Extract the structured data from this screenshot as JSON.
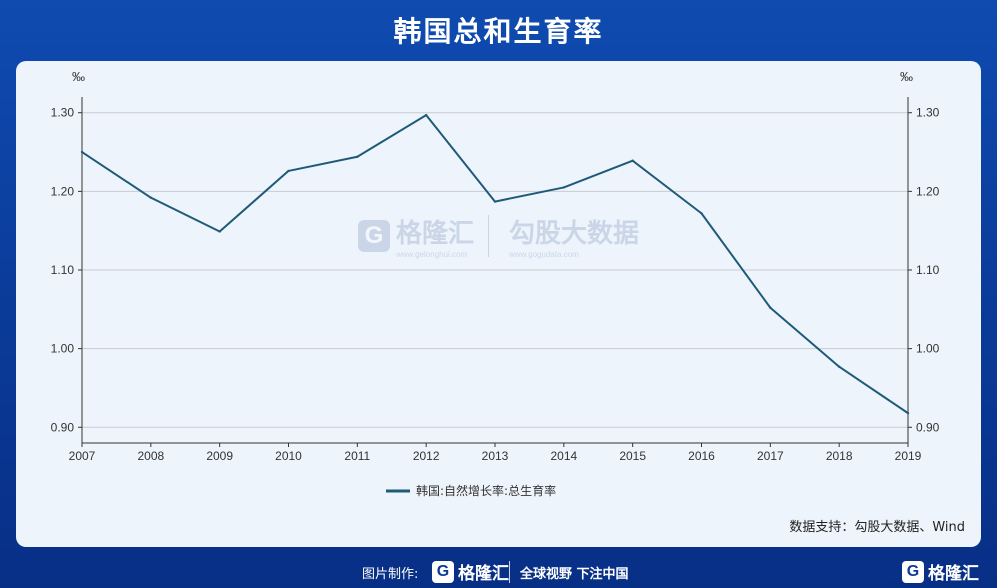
{
  "title": "韩国总和生育率",
  "chart_data": {
    "type": "line",
    "x": [
      "2007",
      "2008",
      "2009",
      "2010",
      "2011",
      "2012",
      "2013",
      "2014",
      "2015",
      "2016",
      "2017",
      "2018",
      "2019"
    ],
    "series": [
      {
        "name": "韩国:自然增长率:总生育率",
        "values": [
          1.25,
          1.192,
          1.149,
          1.226,
          1.244,
          1.297,
          1.187,
          1.205,
          1.239,
          1.172,
          1.052,
          0.977,
          0.918
        ],
        "color": "#1f5a78"
      }
    ],
    "y_unit_left": "‰",
    "y_unit_right": "‰",
    "ylim": [
      0.88,
      1.32
    ],
    "yticks": [
      0.9,
      1.0,
      1.1,
      1.2,
      1.3
    ],
    "ytick_labels": [
      "0.90",
      "1.00",
      "1.10",
      "1.20",
      "1.30"
    ],
    "grid": true,
    "legend_position": "bottom-center"
  },
  "watermark": {
    "logo_letter": "G",
    "brand": "格隆汇",
    "brand_url": "www.gelonghui.com",
    "partner": "勾股大数据",
    "partner_url": "www.gogudata.com"
  },
  "source": "数据支持：勾股大数据、Wind",
  "footer": {
    "made_by": "图片制作:",
    "logo_letter": "G",
    "brand": "格隆汇",
    "slogan": "全球视野 下注中国",
    "right_brand": "格隆汇"
  }
}
